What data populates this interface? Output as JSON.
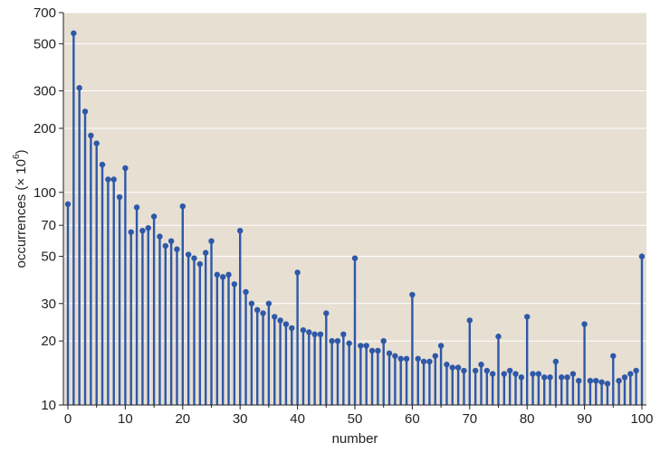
{
  "chart_data": {
    "type": "lollipop",
    "title": "",
    "xlabel": "number",
    "ylabel": "occurrences (× 10",
    "ylabel_superscript": "6",
    "ylabel_suffix": ")",
    "y_scale": "log",
    "xlim": [
      0,
      100
    ],
    "ylim": [
      10,
      700
    ],
    "x_ticks": [
      0,
      10,
      20,
      30,
      40,
      50,
      60,
      70,
      80,
      90,
      100
    ],
    "y_ticks": [
      10,
      20,
      30,
      50,
      70,
      100,
      200,
      300,
      500,
      700
    ],
    "grid": true,
    "colors": {
      "background": "#e6dfd2",
      "stem": "#2e58a8",
      "grid": "#ffffff"
    },
    "x": [
      0,
      1,
      2,
      3,
      4,
      5,
      6,
      7,
      8,
      9,
      10,
      11,
      12,
      13,
      14,
      15,
      16,
      17,
      18,
      19,
      20,
      21,
      22,
      23,
      24,
      25,
      26,
      27,
      28,
      29,
      30,
      31,
      32,
      33,
      34,
      35,
      36,
      37,
      38,
      39,
      40,
      41,
      42,
      43,
      44,
      45,
      46,
      47,
      48,
      49,
      50,
      51,
      52,
      53,
      54,
      55,
      56,
      57,
      58,
      59,
      60,
      61,
      62,
      63,
      64,
      65,
      66,
      67,
      68,
      69,
      70,
      71,
      72,
      73,
      74,
      75,
      76,
      77,
      78,
      79,
      80,
      81,
      82,
      83,
      84,
      85,
      86,
      87,
      88,
      89,
      90,
      91,
      92,
      93,
      94,
      95,
      96,
      97,
      98,
      99,
      100
    ],
    "values": [
      88,
      560,
      310,
      240,
      185,
      170,
      135,
      115,
      115,
      95,
      130,
      65,
      85,
      66,
      68,
      77,
      62,
      56,
      59,
      54,
      86,
      51,
      49,
      46,
      52,
      59,
      41,
      40,
      41,
      37,
      66,
      34,
      30,
      28,
      27,
      30,
      26,
      25,
      24,
      23,
      42,
      22.5,
      22,
      21.5,
      21.5,
      27,
      20,
      20,
      21.5,
      19.5,
      49,
      19,
      19,
      18,
      18,
      20,
      17.5,
      17,
      16.5,
      16.5,
      33,
      16.5,
      16,
      16,
      17,
      19,
      15.5,
      15,
      15,
      14.5,
      25,
      14.5,
      15.5,
      14.5,
      14,
      21,
      14,
      14.5,
      14,
      13.5,
      26,
      14,
      14,
      13.5,
      13.5,
      16,
      13.5,
      13.5,
      14,
      13,
      24,
      13,
      13,
      12.8,
      12.6,
      17,
      13,
      13.5,
      14,
      14.5,
      50
    ]
  }
}
